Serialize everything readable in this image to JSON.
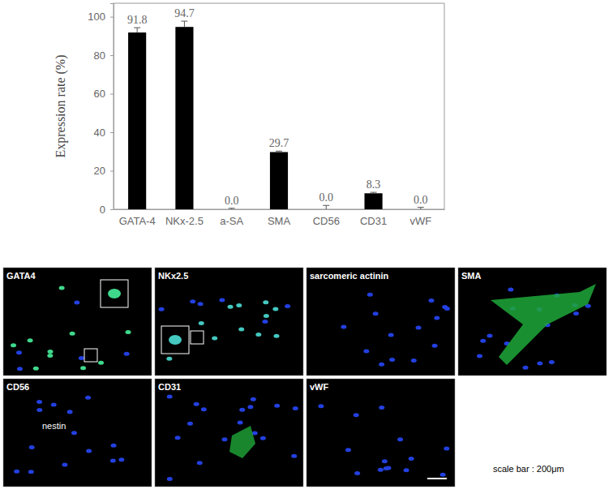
{
  "chart_data": {
    "type": "bar",
    "y_label": "Expression rate (%)",
    "categories": [
      "GATA-4",
      "NKx-2.5",
      "a-SA",
      "SMA",
      "CD56",
      "CD31",
      "vWF"
    ],
    "values": [
      91.8,
      94.7,
      0.0,
      29.7,
      0.0,
      8.3,
      0.0
    ],
    "value_labels": [
      "91.8",
      "94.7",
      "0.0",
      "29.7",
      "0.0",
      "8.3",
      "0.0"
    ],
    "errors": [
      2.5,
      3.0,
      0.5,
      0.5,
      2.0,
      0.5,
      1.0
    ],
    "color": "#000000",
    "ylim": [
      0,
      107
    ],
    "yticks": [
      0,
      20,
      40,
      60,
      80,
      100
    ],
    "data_labels": true,
    "grid": false
  },
  "panels": {
    "labels": [
      "GATA4",
      "NKx2.5",
      "sarcomeric actinin",
      "SMA",
      "CD56",
      "CD31",
      "vWF"
    ],
    "note": "nestin",
    "scale_bar": "scale bar : 200μm"
  }
}
